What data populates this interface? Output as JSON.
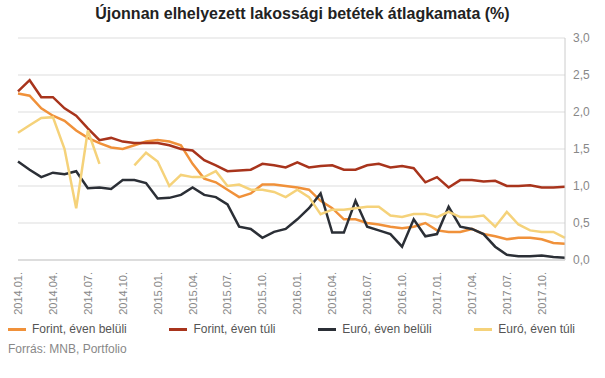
{
  "chart_data": {
    "type": "line",
    "title": "Újonnan elhelyezett lakossági betétek átlagkamata (%)",
    "source": "Forrás: MNB, Portfolio",
    "categories": [
      "2014.01.",
      null,
      null,
      "2014.04.",
      null,
      null,
      "2014.07.",
      null,
      null,
      "2014.10.",
      null,
      null,
      "2015.01.",
      null,
      null,
      "2015.04.",
      null,
      null,
      "2015.07.",
      null,
      null,
      "2015.10.",
      null,
      null,
      "2016.01.",
      null,
      null,
      "2016.04.",
      null,
      null,
      "2016.07.",
      null,
      null,
      "2016.10.",
      null,
      null,
      "2017.01.",
      null,
      null,
      "2017.04.",
      null,
      null,
      "2017.07.",
      null,
      null,
      "2017.10.",
      null,
      null
    ],
    "series": [
      {
        "name": "Forint, éven belüli",
        "color": "#f0913a",
        "values": [
          2.25,
          2.22,
          2.05,
          1.95,
          1.88,
          1.75,
          1.65,
          1.58,
          1.52,
          1.5,
          1.55,
          1.6,
          1.62,
          1.6,
          1.55,
          1.3,
          1.1,
          1.05,
          0.95,
          0.85,
          0.9,
          1.02,
          1.02,
          1.0,
          0.98,
          0.95,
          0.8,
          0.7,
          0.55,
          0.55,
          0.5,
          0.48,
          0.45,
          0.43,
          0.45,
          0.5,
          0.4,
          0.38,
          0.38,
          0.42,
          0.35,
          0.32,
          0.28,
          0.3,
          0.3,
          0.28,
          0.23,
          0.22
        ]
      },
      {
        "name": "Forint, éven túli",
        "color": "#a8341c",
        "values": [
          2.28,
          2.43,
          2.2,
          2.2,
          2.05,
          1.95,
          1.78,
          1.62,
          1.65,
          1.6,
          1.58,
          1.58,
          1.58,
          1.55,
          1.5,
          1.48,
          1.35,
          1.28,
          1.2,
          1.21,
          1.22,
          1.3,
          1.28,
          1.25,
          1.32,
          1.25,
          1.27,
          1.28,
          1.22,
          1.22,
          1.28,
          1.3,
          1.25,
          1.27,
          1.24,
          1.05,
          1.12,
          0.98,
          1.08,
          1.08,
          1.06,
          1.07,
          1.0,
          1.0,
          1.01,
          0.98,
          0.98,
          0.99
        ]
      },
      {
        "name": "Euró, éven belüli",
        "color": "#2b2f36",
        "values": [
          1.33,
          1.22,
          1.12,
          1.18,
          1.16,
          1.2,
          0.97,
          0.98,
          0.96,
          1.08,
          1.08,
          1.04,
          0.83,
          0.84,
          0.88,
          0.98,
          0.88,
          0.85,
          0.75,
          0.45,
          0.42,
          0.3,
          0.38,
          0.42,
          0.55,
          0.7,
          0.9,
          0.37,
          0.37,
          0.8,
          0.45,
          0.4,
          0.35,
          0.18,
          0.55,
          0.32,
          0.35,
          0.72,
          0.45,
          0.42,
          0.35,
          0.18,
          0.07,
          0.05,
          0.05,
          0.06,
          0.04,
          0.03
        ]
      },
      {
        "name": "Euró, éven túli",
        "color": "#f5d27a",
        "values": [
          1.72,
          1.82,
          1.92,
          1.93,
          1.5,
          0.7,
          1.75,
          1.3,
          null,
          null,
          1.28,
          1.45,
          1.33,
          1.0,
          1.15,
          1.12,
          1.12,
          1.2,
          1.0,
          1.02,
          0.95,
          0.95,
          0.92,
          0.85,
          0.95,
          0.85,
          0.62,
          0.68,
          0.68,
          0.7,
          0.72,
          0.72,
          0.6,
          0.58,
          0.62,
          0.62,
          0.58,
          0.65,
          0.58,
          0.58,
          0.6,
          0.45,
          0.65,
          0.48,
          0.4,
          0.38,
          0.38,
          0.3
        ]
      }
    ],
    "ylim": [
      0,
      3
    ],
    "yticks": [
      {
        "value": 0,
        "label": "0,0"
      },
      {
        "value": 0.5,
        "label": "0,5"
      },
      {
        "value": 1,
        "label": "1,0"
      },
      {
        "value": 1.5,
        "label": "1,5"
      },
      {
        "value": 2,
        "label": "2,0"
      },
      {
        "value": 2.5,
        "label": "2,5"
      },
      {
        "value": 3,
        "label": "3,0"
      }
    ],
    "grid": true,
    "legend": "bottom"
  }
}
